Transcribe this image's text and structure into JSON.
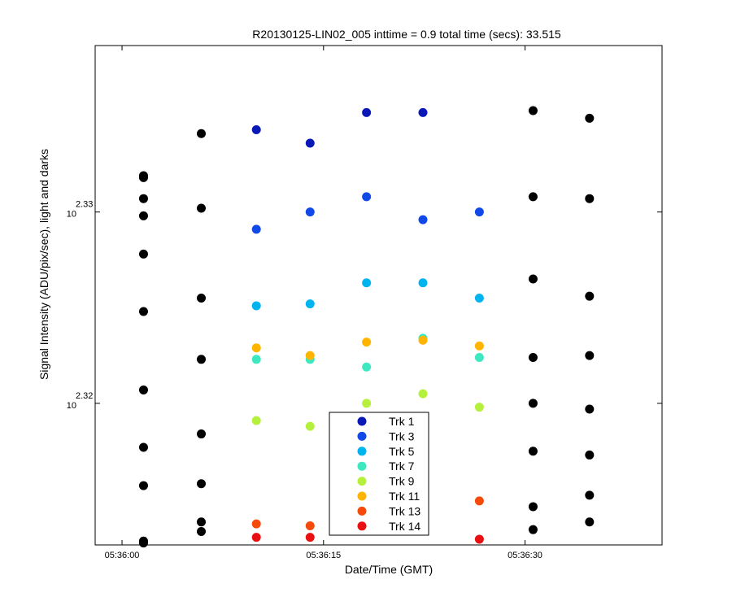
{
  "chart_data": {
    "type": "scatter",
    "title": "R20130125-LIN02_005 inttime = 0.9 total time (secs): 33.515",
    "xlabel": "Date/Time (GMT)",
    "ylabel": "Signal Intensity (ADU/pix/sec), light and darks",
    "y_scale": "log",
    "x_ticks": [
      {
        "value": 0,
        "label": "05:36:00"
      },
      {
        "value": 15,
        "label": "05:36:15"
      },
      {
        "value": 30,
        "label": "05:36:30"
      }
    ],
    "y_ticks": [
      {
        "value": 2.32,
        "base": "10",
        "exponent": "2.32"
      },
      {
        "value": 2.33,
        "base": "10",
        "exponent": "2.33"
      }
    ],
    "xlim": [
      -2.0,
      40.2
    ],
    "ylim_log10": [
      2.3126,
      2.3387
    ],
    "legend_position": "bottom-center",
    "series": [
      {
        "name": "Trk 1",
        "color": "#0b18b8",
        "points": [
          [
            10.0,
            2.3343
          ],
          [
            14.0,
            2.3336
          ],
          [
            18.2,
            2.3352
          ],
          [
            22.4,
            2.3352
          ]
        ]
      },
      {
        "name": "Trk 3",
        "color": "#1148e8",
        "points": [
          [
            10.0,
            2.3291
          ],
          [
            14.0,
            2.33
          ],
          [
            18.2,
            2.3308
          ],
          [
            22.4,
            2.3296
          ],
          [
            26.6,
            2.33
          ]
        ]
      },
      {
        "name": "Trk 5",
        "color": "#00b4f0",
        "points": [
          [
            10.0,
            2.3251
          ],
          [
            14.0,
            2.3252
          ],
          [
            18.2,
            2.3263
          ],
          [
            22.4,
            2.3263
          ],
          [
            26.6,
            2.3255
          ]
        ]
      },
      {
        "name": "Trk 7",
        "color": "#3ce8c0",
        "points": [
          [
            10.0,
            2.3223
          ],
          [
            14.0,
            2.3223
          ],
          [
            18.2,
            2.3219
          ],
          [
            22.4,
            2.3234
          ],
          [
            26.6,
            2.3224
          ]
        ]
      },
      {
        "name": "Trk 9",
        "color": "#b4f03c",
        "points": [
          [
            10.0,
            2.3191
          ],
          [
            14.0,
            2.3188
          ],
          [
            18.2,
            2.32
          ],
          [
            22.4,
            2.3205
          ],
          [
            26.6,
            2.3198
          ]
        ]
      },
      {
        "name": "Trk 11",
        "color": "#ffb400",
        "points": [
          [
            10.0,
            2.3229
          ],
          [
            14.0,
            2.3225
          ],
          [
            18.2,
            2.3232
          ],
          [
            22.4,
            2.3233
          ],
          [
            26.6,
            2.323
          ]
        ]
      },
      {
        "name": "Trk 13",
        "color": "#f54a0a",
        "points": [
          [
            10.0,
            2.3137
          ],
          [
            14.0,
            2.3136
          ],
          [
            22.4,
            2.3149
          ],
          [
            26.6,
            2.3149
          ]
        ]
      },
      {
        "name": "Trk 14",
        "color": "#e81010",
        "points": [
          [
            10.0,
            2.313
          ],
          [
            14.0,
            2.313
          ],
          [
            22.4,
            2.3139
          ],
          [
            26.6,
            2.3129
          ]
        ]
      },
      {
        "color": "#000000",
        "points": [
          [
            1.6,
            2.3319
          ],
          [
            1.6,
            2.3298
          ],
          [
            1.6,
            2.3318
          ],
          [
            1.6,
            2.3307
          ],
          [
            1.6,
            2.3278
          ],
          [
            1.6,
            2.3248
          ],
          [
            1.6,
            2.3207
          ],
          [
            1.6,
            2.3177
          ],
          [
            1.6,
            2.3157
          ],
          [
            1.6,
            2.3128
          ],
          [
            1.6,
            2.3127
          ],
          [
            5.9,
            2.3341
          ],
          [
            5.9,
            2.3302
          ],
          [
            5.9,
            2.3255
          ],
          [
            5.9,
            2.3223
          ],
          [
            5.9,
            2.3184
          ],
          [
            5.9,
            2.3158
          ],
          [
            5.9,
            2.3138
          ],
          [
            5.9,
            2.3133
          ],
          [
            30.6,
            2.3353
          ],
          [
            30.6,
            2.3308
          ],
          [
            30.6,
            2.3265
          ],
          [
            30.6,
            2.3224
          ],
          [
            30.6,
            2.32
          ],
          [
            30.6,
            2.3175
          ],
          [
            30.6,
            2.3146
          ],
          [
            30.6,
            2.3134
          ],
          [
            34.8,
            2.3349
          ],
          [
            34.8,
            2.3307
          ],
          [
            34.8,
            2.3256
          ],
          [
            34.8,
            2.3225
          ],
          [
            34.8,
            2.3197
          ],
          [
            34.8,
            2.3173
          ],
          [
            34.8,
            2.3152
          ],
          [
            34.8,
            2.3138
          ]
        ]
      }
    ]
  }
}
